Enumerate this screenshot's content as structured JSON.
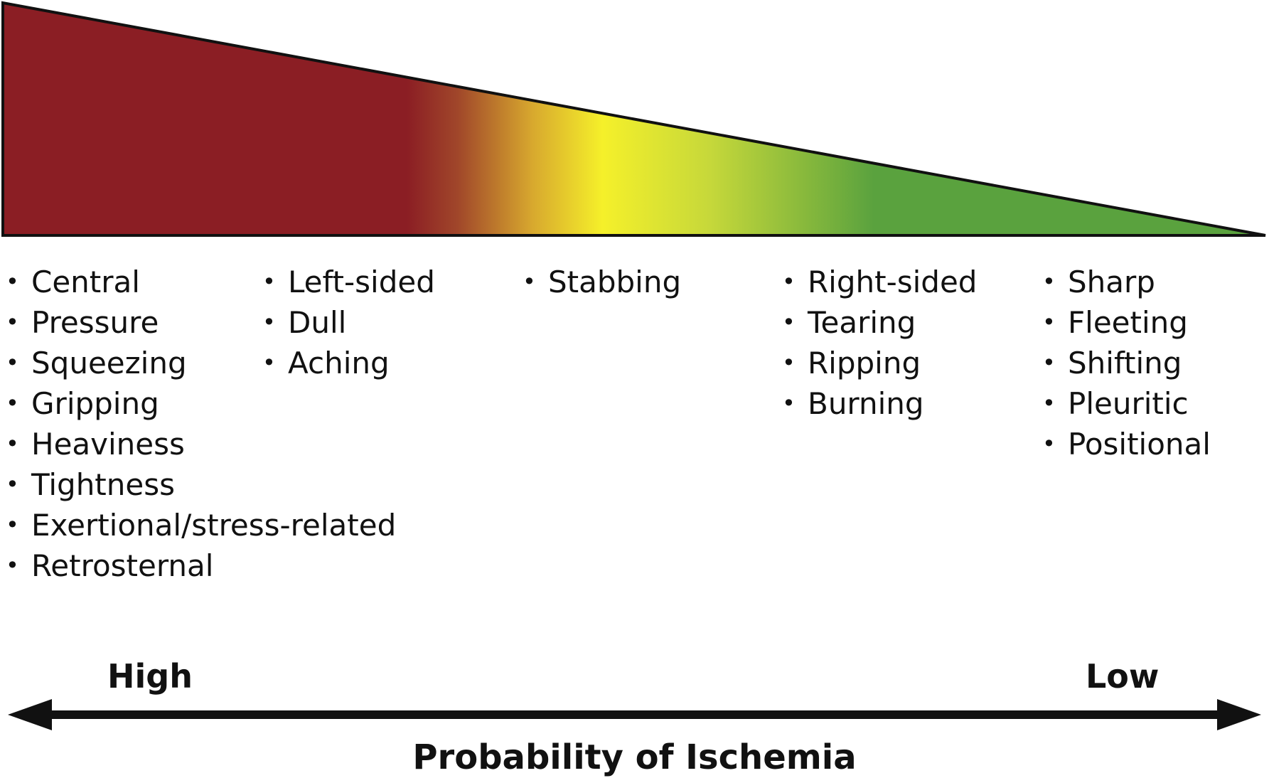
{
  "wedge": {
    "colors": {
      "high": "#8b1e24",
      "transition": "#c8882a",
      "middle": "#f5f02a",
      "low": "#5aa23e"
    }
  },
  "columns": [
    {
      "items": [
        "Central",
        "Pressure",
        "Squeezing",
        "Gripping",
        "Heaviness",
        "Tightness",
        "Exertional/stress-related",
        "Retrosternal"
      ]
    },
    {
      "items": [
        "Left-sided",
        "Dull",
        "Aching"
      ]
    },
    {
      "items": [
        "Stabbing"
      ]
    },
    {
      "items": [
        "Right-sided",
        "Tearing",
        "Ripping",
        "Burning"
      ]
    },
    {
      "items": [
        "Sharp",
        "Fleeting",
        "Shifting",
        "Pleuritic",
        "Positional"
      ]
    }
  ],
  "axis": {
    "high_label": "High",
    "low_label": "Low",
    "title": "Probability of Ischemia"
  }
}
